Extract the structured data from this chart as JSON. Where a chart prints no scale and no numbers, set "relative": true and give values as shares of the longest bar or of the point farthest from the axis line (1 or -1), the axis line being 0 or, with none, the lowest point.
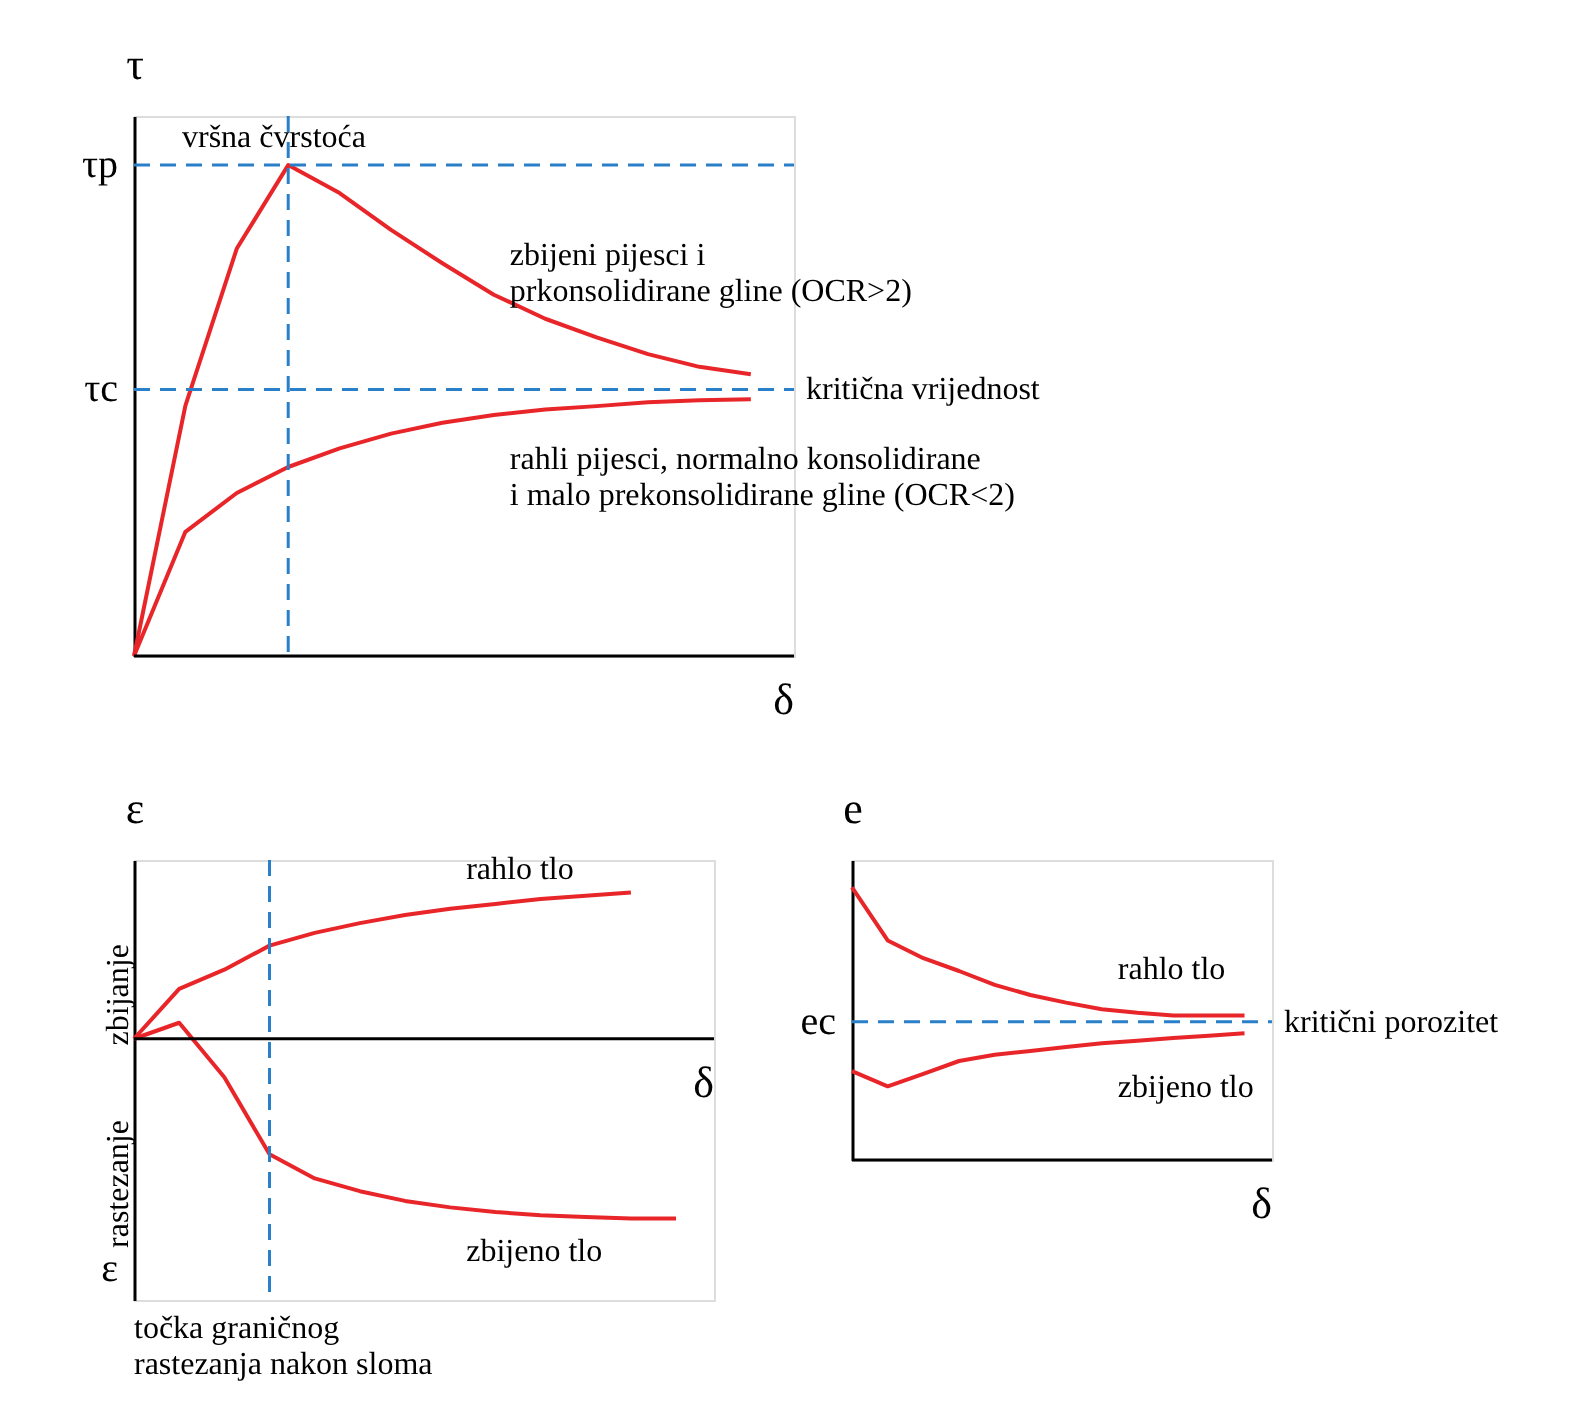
{
  "chart_data": [
    {
      "type": "line",
      "relative": true,
      "categories": [
        null,
        null,
        null,
        null,
        null,
        null,
        null,
        null,
        null,
        null,
        null,
        null,
        null
      ],
      "ylabel": "τ",
      "xlabel": "δ",
      "series": [
        {
          "name": "zbijeni pijesci i\nprkonsolidirane gline (OCR>2)",
          "color": "#e8262a",
          "values": [
            0,
            0.51,
            0.83,
            1,
            0.943,
            0.868,
            0.8,
            0.736,
            0.687,
            0.649,
            0.615,
            0.589,
            0.574
          ]
        },
        {
          "name": "rahli pijesci, normalno konsolidirane\ni malo prekonsolidirane gline (OCR<2)",
          "color": "#e8262a",
          "values": [
            0,
            0.253,
            0.332,
            0.385,
            0.423,
            0.453,
            0.475,
            0.491,
            0.502,
            0.509,
            0.517,
            0.521,
            0.523
          ]
        }
      ],
      "ref_lines": [
        {
          "axis": "y",
          "value": 1,
          "color": "#2a7fc9",
          "line_style": "dashed"
        },
        {
          "axis": "y",
          "value": 0.543,
          "label": "kritična vrijednost",
          "color": "#2a7fc9",
          "line_style": "dashed"
        }
      ],
      "annotations": [
        "vršna čvrstoća",
        "τp",
        "τc"
      ]
    },
    {
      "type": "line",
      "relative": true,
      "categories": [
        null,
        null,
        null,
        null,
        null,
        null,
        null,
        null,
        null,
        null,
        null,
        null,
        null
      ],
      "ylabel": "ε",
      "xlabel": "δ",
      "series": [
        {
          "name": "rahlo tlo",
          "color": "#e8262a",
          "values": [
            0,
            0.277,
            0.384,
            0.518,
            0.589,
            0.643,
            0.688,
            0.723,
            0.75,
            0.777,
            0.795,
            0.813,
            null
          ]
        },
        {
          "name": "zbijeno tlo",
          "color": "#e8262a",
          "values": [
            0,
            0.089,
            -0.214,
            -0.643,
            -0.777,
            -0.848,
            -0.902,
            -0.938,
            -0.964,
            -0.982,
            -0.991,
            -1,
            -1
          ]
        }
      ],
      "annotations": [
        "zbijanje",
        "rastezanje",
        "ε",
        "točka graničnog\nrastezanja nakon sloma"
      ]
    },
    {
      "type": "line",
      "relative": true,
      "categories": [
        null,
        null,
        null,
        null,
        null,
        null,
        null,
        null,
        null,
        null,
        null,
        null
      ],
      "ylabel": "e",
      "xlabel": "δ",
      "series": [
        {
          "name": "rahlo tlo",
          "color": "#e8262a",
          "values": [
            1,
            0.805,
            0.74,
            0.693,
            0.642,
            0.605,
            0.577,
            0.553,
            0.54,
            0.53,
            0.53,
            0.53
          ]
        },
        {
          "name": "zbijeno tlo",
          "color": "#e8262a",
          "values": [
            0.326,
            0.27,
            0.316,
            0.363,
            0.386,
            0.4,
            0.414,
            0.428,
            0.437,
            0.447,
            0.456,
            0.465
          ]
        }
      ],
      "ref_lines": [
        {
          "axis": "y",
          "value": 0.507,
          "label": "kritični porozitet",
          "color": "#2a7fc9",
          "line_style": "dashed"
        }
      ],
      "annotations": [
        "ec"
      ]
    }
  ]
}
